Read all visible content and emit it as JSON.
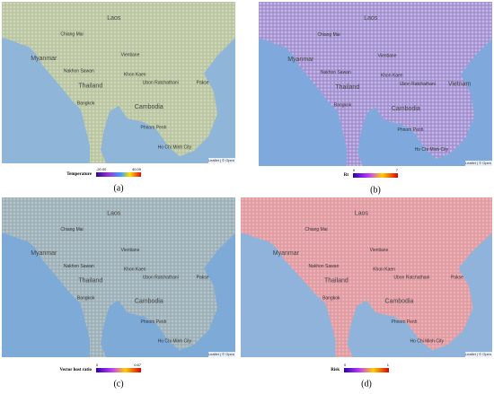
{
  "panels": [
    {
      "caption": "(a)",
      "legend": {
        "title": "Temperature",
        "min": "-20.00",
        "max": "40.00"
      },
      "attribution": "Leaflet | © Open",
      "places": [
        "Laos",
        "Myanmar",
        "Chiang Mai",
        "Vientiane",
        "Thailand",
        "Nakhon Sawan",
        "Khon Kaen",
        "Ubon Ratchathani",
        "Bangkok",
        "Cambodia",
        "Phnom Penh",
        "Ho Chi Minh City",
        "Pakse"
      ]
    },
    {
      "caption": "(b)",
      "legend": {
        "title": "Rt",
        "min": "0",
        "max": "7"
      },
      "attribution": "Leaflet | © Open",
      "places": [
        "Laos",
        "Myanmar",
        "Chiang Mai",
        "Vientiane",
        "Thailand",
        "Nakhon Sawan",
        "Khon Kaen",
        "Ubon Ratchathani",
        "Bangkok",
        "Cambodia",
        "Phnom Penh",
        "Ho Chi Minh City",
        "Vietnam"
      ]
    },
    {
      "caption": "(c)",
      "legend": {
        "title": "Vector host ratio",
        "min": "0",
        "max": "0.67"
      },
      "attribution": "Leaflet | © Open",
      "places": [
        "Laos",
        "Myanmar",
        "Chiang Mai",
        "Vientiane",
        "Thailand",
        "Nakhon Sawan",
        "Khon Kaen",
        "Ubon Ratchathani",
        "Bangkok",
        "Cambodia",
        "Phnom Penh",
        "Ho Chi Minh City",
        "Pakse"
      ]
    },
    {
      "caption": "(d)",
      "legend": {
        "title": "Risk",
        "min": "0",
        "max": "1"
      },
      "attribution": "Leaflet | © Open",
      "places": [
        "Laos",
        "Myanmar",
        "Chiang Mai",
        "Vientiane",
        "Thailand",
        "Nakhon Sawan",
        "Khon Kaen",
        "Ubon Ratchathani",
        "Bangkok",
        "Cambodia",
        "Phnom Penh",
        "Ho Chi Minh City",
        "Pakse"
      ]
    }
  ]
}
